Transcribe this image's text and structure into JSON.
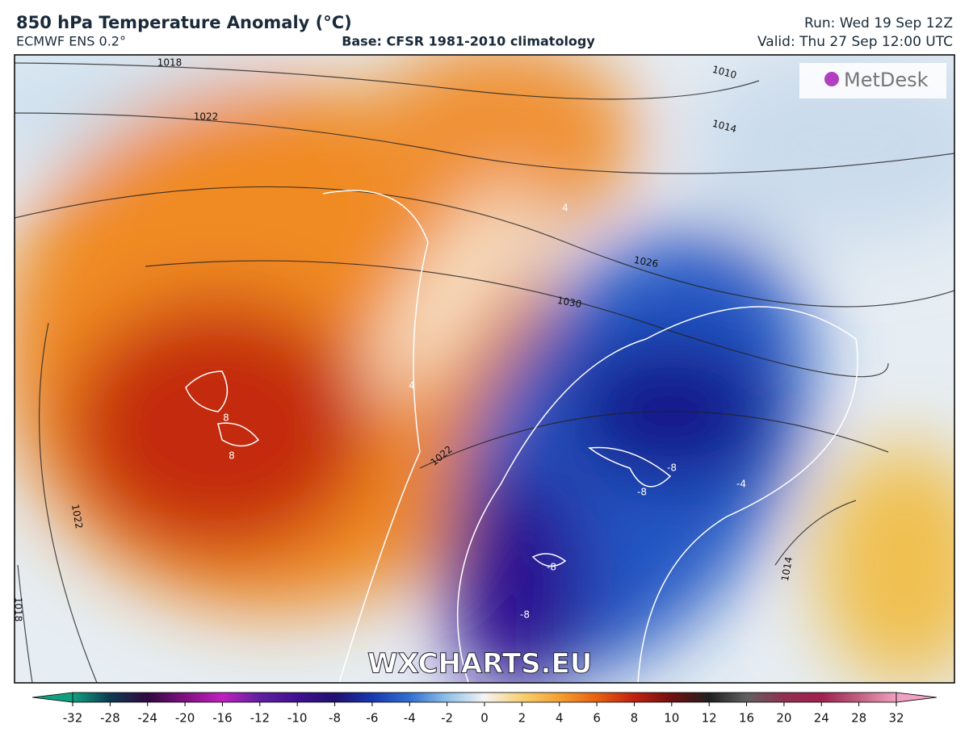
{
  "header": {
    "title": "850 hPa Temperature Anomaly (°C)",
    "model": "ECMWF ENS 0.2°",
    "base": "Base: CFSR 1981-2010 climatology",
    "run": "Run: Wed 19 Sep 12Z",
    "valid": "Valid: Thu 27 Sep 12:00 UTC"
  },
  "map": {
    "logo": "MetDesk",
    "watermark": "WXCHARTS.EU",
    "isobar_labels": [
      1018,
      1022,
      1010,
      1014,
      1026,
      1030,
      1022,
      1022,
      1014,
      1018
    ],
    "anomaly_labels": [
      8,
      8,
      4,
      -8,
      -8,
      -8,
      -8,
      -4,
      4
    ]
  },
  "colorbar": {
    "ticks": [
      -32,
      -28,
      -24,
      -20,
      -16,
      -12,
      -10,
      -8,
      -6,
      -4,
      -2,
      0,
      2,
      4,
      6,
      8,
      10,
      12,
      16,
      20,
      24,
      28,
      32
    ],
    "colors": [
      "#10a080",
      "#0c3a50",
      "#300840",
      "#801080",
      "#c020c0",
      "#6020a0",
      "#401090",
      "#201070",
      "#1838b0",
      "#3070d0",
      "#90c0e8",
      "#f4f4f4",
      "#f8d070",
      "#f4a030",
      "#e86010",
      "#c02010",
      "#701010",
      "#202020",
      "#606060",
      "#903050",
      "#a02050",
      "#c06080",
      "#f0a0c0"
    ]
  }
}
